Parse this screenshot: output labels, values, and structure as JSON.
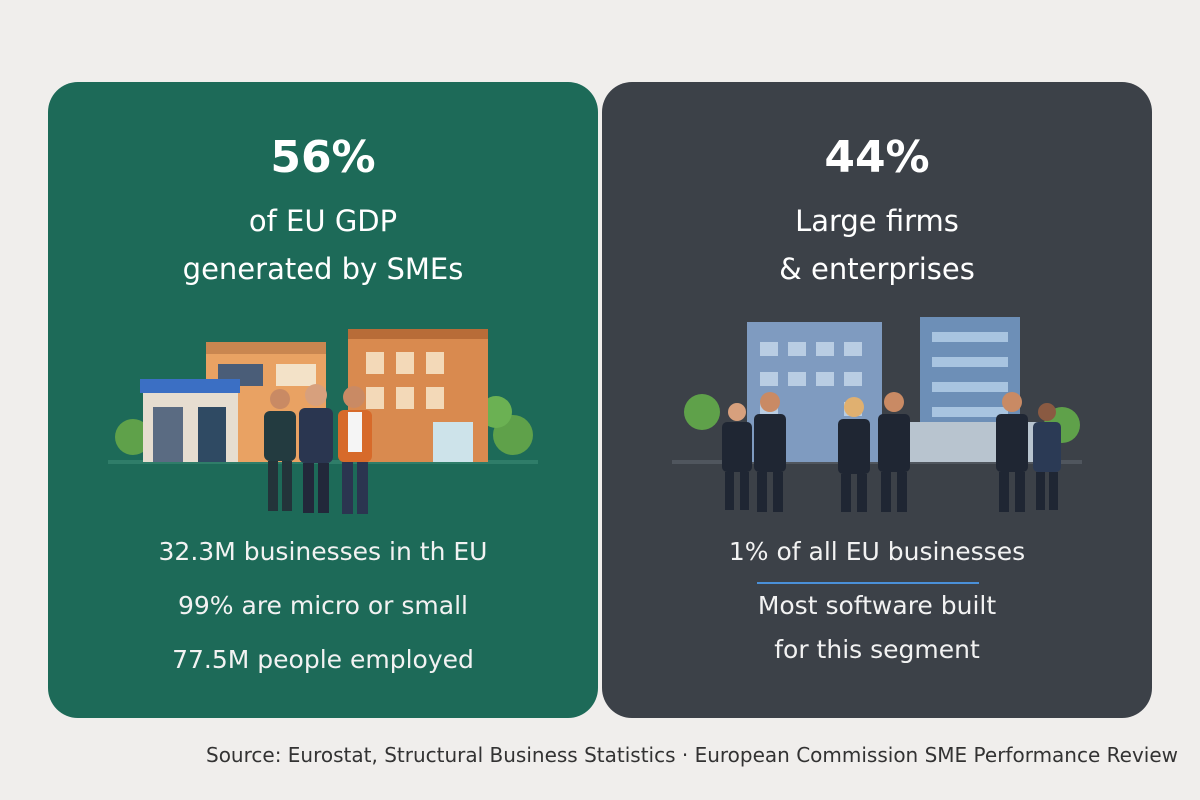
{
  "left_card": {
    "stat": "56%",
    "caption": [
      "of EU GDP",
      "generated by SMEs"
    ],
    "facts": [
      "32.3M businesses in th EU",
      "99% are micro or small",
      "77.5M people employed"
    ]
  },
  "right_card": {
    "stat": "44%",
    "caption": [
      "Large firms",
      "& enterprises"
    ],
    "facts": [
      "1% of all EU businesses",
      "Most software built",
      "for this segment"
    ]
  },
  "source": "Source: Eurostat, Structural Business Statistics · European Commission SME Performance Review"
}
